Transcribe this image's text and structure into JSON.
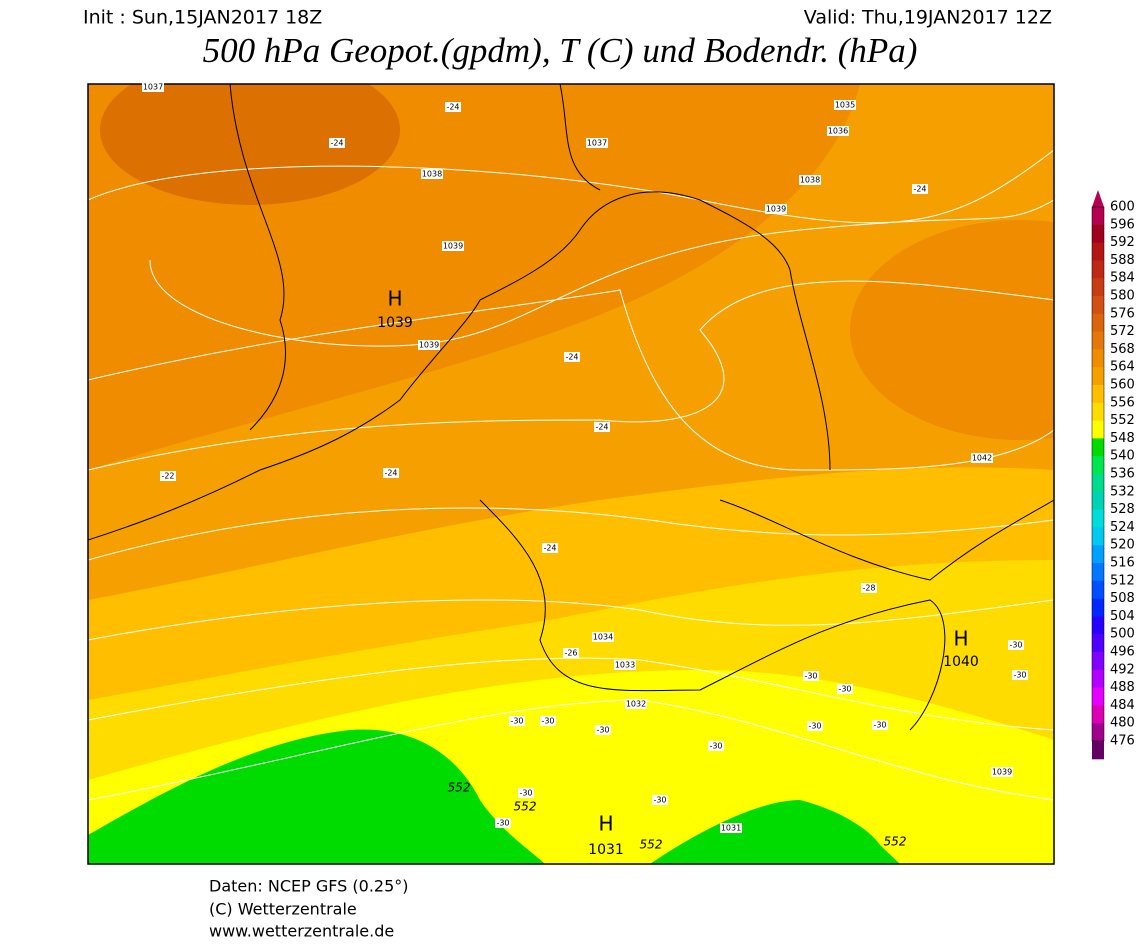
{
  "header": {
    "init": "Init : Sun,15JAN2017 18Z",
    "valid": "Valid: Thu,19JAN2017 12Z",
    "title": "500 hPa Geopot.(gpdm), T (C) und Bodendr. (hPa)"
  },
  "map": {
    "highs": [
      {
        "symbol": "H",
        "value": 1039
      },
      {
        "symbol": "H",
        "value": 1040
      },
      {
        "symbol": "H",
        "value": 1031
      }
    ],
    "isobar_labels": [
      1037,
      1035,
      1037,
      1036,
      1038,
      1038,
      1039,
      1039,
      1039,
      1042,
      1034,
      1033,
      1032,
      1031,
      1039
    ],
    "temperature_labels": [
      -24,
      -24,
      -24,
      -24,
      -24,
      -22,
      -24,
      -24,
      -26,
      -28,
      -30,
      -30,
      -30,
      -30,
      -30,
      -30,
      -30,
      -30,
      -30,
      -30,
      -30,
      -30,
      -30
    ],
    "geopotential_labels": [
      552,
      552,
      552,
      552
    ]
  },
  "colorbar": {
    "labels": [
      600,
      596,
      592,
      588,
      584,
      580,
      576,
      572,
      568,
      564,
      560,
      556,
      552,
      548,
      540,
      536,
      532,
      528,
      524,
      520,
      516,
      512,
      508,
      504,
      500,
      496,
      492,
      488,
      484,
      480,
      476
    ],
    "colors": [
      "#b40050",
      "#a0001e",
      "#b41414",
      "#be2814",
      "#c83c14",
      "#d25014",
      "#dc640a",
      "#e6780a",
      "#f08c00",
      "#f5a000",
      "#ffbe00",
      "#ffdc00",
      "#ffff00",
      "#00dc00",
      "#00e650",
      "#00dc8c",
      "#00d2b4",
      "#00dcdc",
      "#00c8f0",
      "#00a0ff",
      "#0078ff",
      "#0050ff",
      "#0028ff",
      "#2800ff",
      "#5000ff",
      "#8200ff",
      "#b400ff",
      "#e600ff",
      "#dc00b4",
      "#a0008c",
      "#640064"
    ]
  },
  "footer": {
    "lines": [
      "Daten: NCEP GFS (0.25°)",
      "(C) Wetterzentrale",
      "www.wetterzentrale.de"
    ]
  }
}
